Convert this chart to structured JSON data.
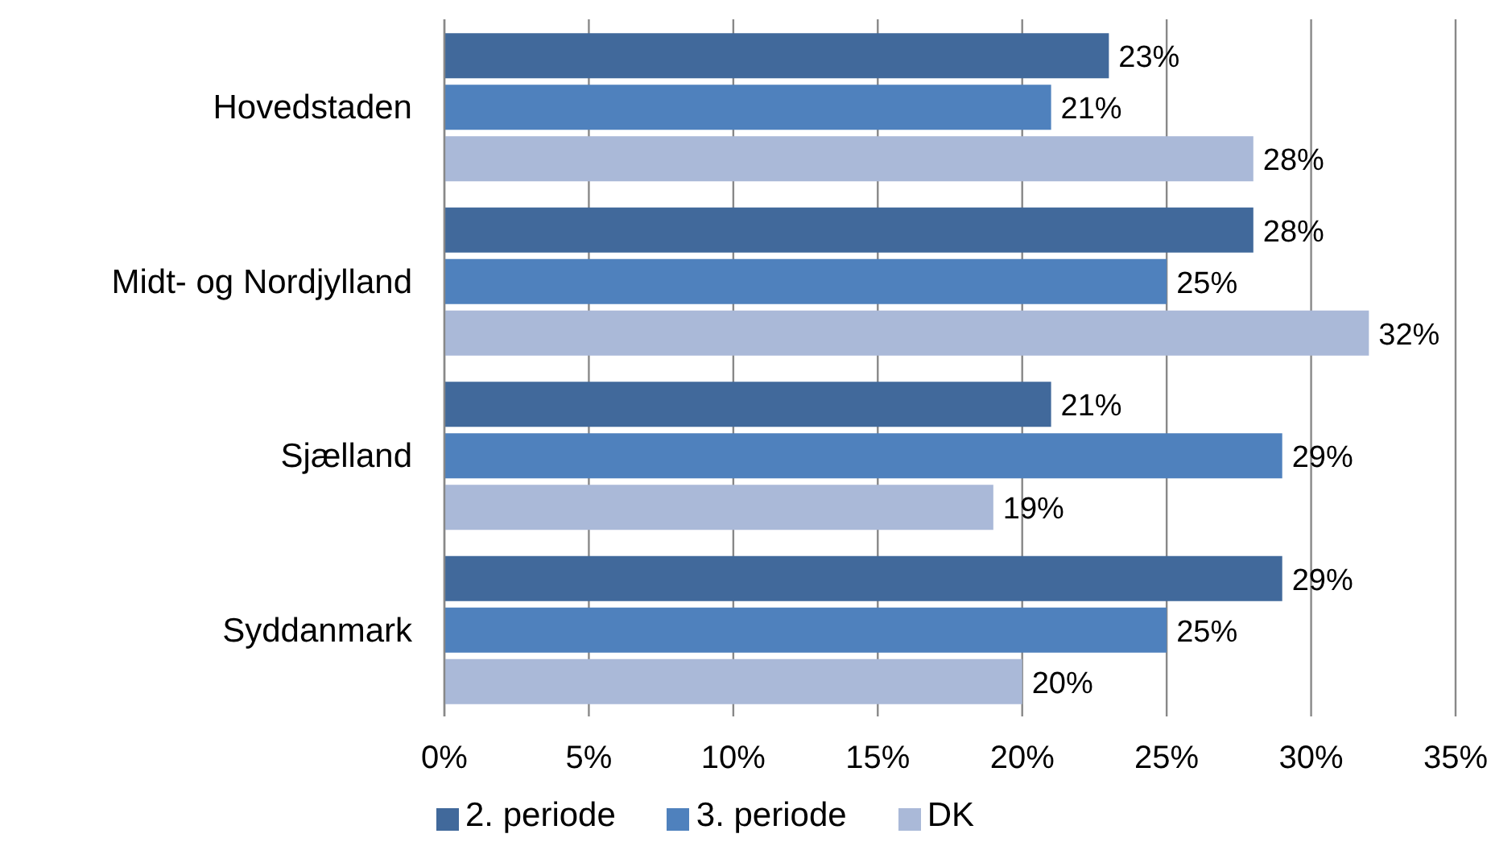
{
  "chart_data": {
    "type": "bar",
    "orientation": "horizontal",
    "categories": [
      "Hovedstaden",
      "Midt- og Nordjylland",
      "Sjælland",
      "Syddanmark"
    ],
    "series": [
      {
        "name": "2. periode",
        "color": "#41699b",
        "values": [
          23,
          28,
          21,
          29
        ],
        "value_labels": [
          "23%",
          "28%",
          "21%",
          "29%"
        ]
      },
      {
        "name": "3. periode",
        "color": "#4f81bd",
        "values": [
          21,
          25,
          29,
          25
        ],
        "value_labels": [
          "21%",
          "25%",
          "29%",
          "25%"
        ]
      },
      {
        "name": "DK",
        "color": "#aab9d8",
        "values": [
          28,
          32,
          19,
          20
        ],
        "value_labels": [
          "28%",
          "32%",
          "19%",
          "20%"
        ]
      }
    ],
    "xlim": [
      0,
      35
    ],
    "xticks": [
      {
        "value": 0,
        "label": "0%"
      },
      {
        "value": 5,
        "label": "5%"
      },
      {
        "value": 10,
        "label": "10%"
      },
      {
        "value": 15,
        "label": "15%"
      },
      {
        "value": 20,
        "label": "20%"
      },
      {
        "value": 25,
        "label": "25%"
      },
      {
        "value": 30,
        "label": "30%"
      },
      {
        "value": 35,
        "label": "35%"
      }
    ],
    "grid": "x",
    "legend": "bottom"
  }
}
